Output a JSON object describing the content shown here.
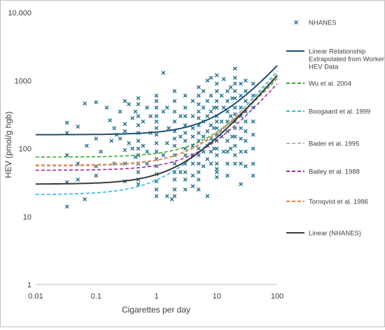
{
  "chart_data": {
    "type": "scatter",
    "title": "",
    "xlabel": "Cigarettes per day",
    "ylabel": "HEV (pmol/g hgb)",
    "x_scale": "log",
    "y_scale": "log",
    "xlim": [
      0.01,
      100
    ],
    "ylim": [
      1,
      10000
    ],
    "x_ticks": [
      "0.01",
      "0.1",
      "1",
      "10",
      "100"
    ],
    "y_ticks": [
      "1",
      "10",
      "100",
      "1000",
      "10,000"
    ],
    "grid": false,
    "legend_position": "right",
    "colors": {
      "nhanes": "#1f6d8c",
      "worker": "#1b4f72",
      "wu": "#3aa832",
      "boogaard": "#2fb7e6",
      "bader": "#b8b8b8",
      "bailey": "#a4289b",
      "tornqvist": "#ee7a3a",
      "linear_nhanes": "#3a3a3a"
    },
    "series": [
      {
        "name": "NHANES",
        "type": "scatter",
        "marker": "x",
        "color_key": "nhanes",
        "points": [
          [
            0.033,
            240
          ],
          [
            0.033,
            170
          ],
          [
            0.033,
            80
          ],
          [
            0.033,
            14
          ],
          [
            0.033,
            32
          ],
          [
            0.05,
            210
          ],
          [
            0.05,
            60
          ],
          [
            0.05,
            35
          ],
          [
            0.065,
            460
          ],
          [
            0.065,
            18
          ],
          [
            0.07,
            110
          ],
          [
            0.1,
            480
          ],
          [
            0.1,
            140
          ],
          [
            0.1,
            55
          ],
          [
            0.1,
            40
          ],
          [
            0.12,
            90
          ],
          [
            0.15,
            400
          ],
          [
            0.17,
            260
          ],
          [
            0.18,
            130
          ],
          [
            0.2,
            60
          ],
          [
            0.2,
            200
          ],
          [
            0.22,
            160
          ],
          [
            0.25,
            350
          ],
          [
            0.25,
            140
          ],
          [
            0.3,
            500
          ],
          [
            0.3,
            230
          ],
          [
            0.3,
            180
          ],
          [
            0.3,
            95
          ],
          [
            0.3,
            60
          ],
          [
            0.3,
            33
          ],
          [
            0.35,
            450
          ],
          [
            0.35,
            120
          ],
          [
            0.4,
            280
          ],
          [
            0.4,
            100
          ],
          [
            0.45,
            350
          ],
          [
            0.45,
            75
          ],
          [
            0.5,
            550
          ],
          [
            0.5,
            450
          ],
          [
            0.5,
            300
          ],
          [
            0.5,
            220
          ],
          [
            0.5,
            170
          ],
          [
            0.5,
            130
          ],
          [
            0.5,
            100
          ],
          [
            0.5,
            80
          ],
          [
            0.5,
            60
          ],
          [
            0.5,
            45
          ],
          [
            0.5,
            35
          ],
          [
            0.5,
            30
          ],
          [
            0.6,
            250
          ],
          [
            0.6,
            110
          ],
          [
            0.7,
            400
          ],
          [
            0.7,
            90
          ],
          [
            0.7,
            60
          ],
          [
            0.8,
            300
          ],
          [
            0.8,
            170
          ],
          [
            1,
            600
          ],
          [
            1,
            500
          ],
          [
            1,
            400
          ],
          [
            1,
            300
          ],
          [
            1,
            250
          ],
          [
            1,
            200
          ],
          [
            1,
            160
          ],
          [
            1,
            120
          ],
          [
            1,
            90
          ],
          [
            1,
            70
          ],
          [
            1,
            55
          ],
          [
            1,
            42
          ],
          [
            1,
            33
          ],
          [
            1,
            25
          ],
          [
            1,
            20
          ],
          [
            1.3,
            1300
          ],
          [
            1.3,
            350
          ],
          [
            1.3,
            80
          ],
          [
            1.5,
            400
          ],
          [
            1.5,
            120
          ],
          [
            1.5,
            20
          ],
          [
            1.6,
            200
          ],
          [
            1.8,
            18
          ],
          [
            2,
            700
          ],
          [
            2,
            500
          ],
          [
            2,
            350
          ],
          [
            2,
            250
          ],
          [
            2,
            180
          ],
          [
            2,
            140
          ],
          [
            2,
            110
          ],
          [
            2,
            80
          ],
          [
            2,
            60
          ],
          [
            2,
            45
          ],
          [
            2,
            35
          ],
          [
            2,
            25
          ],
          [
            2,
            20
          ],
          [
            2.5,
            150
          ],
          [
            2.5,
            300
          ],
          [
            2.5,
            45
          ],
          [
            3,
            600
          ],
          [
            3,
            400
          ],
          [
            3,
            300
          ],
          [
            3,
            220
          ],
          [
            3,
            170
          ],
          [
            3,
            130
          ],
          [
            3,
            100
          ],
          [
            3,
            80
          ],
          [
            3,
            60
          ],
          [
            3,
            45
          ],
          [
            3,
            35
          ],
          [
            3,
            25
          ],
          [
            4,
            500
          ],
          [
            4,
            300
          ],
          [
            4,
            200
          ],
          [
            4,
            150
          ],
          [
            4,
            110
          ],
          [
            4,
            80
          ],
          [
            4,
            60
          ],
          [
            4,
            40
          ],
          [
            4,
            28
          ],
          [
            5,
            800
          ],
          [
            5,
            600
          ],
          [
            5,
            450
          ],
          [
            5,
            350
          ],
          [
            5,
            280
          ],
          [
            5,
            220
          ],
          [
            5,
            170
          ],
          [
            5,
            130
          ],
          [
            5,
            100
          ],
          [
            5,
            80
          ],
          [
            5,
            60
          ],
          [
            5,
            45
          ],
          [
            5,
            35
          ],
          [
            5,
            25
          ],
          [
            6,
            700
          ],
          [
            6,
            400
          ],
          [
            6,
            250
          ],
          [
            6,
            150
          ],
          [
            6,
            90
          ],
          [
            6,
            55
          ],
          [
            7,
            1000
          ],
          [
            7,
            500
          ],
          [
            7,
            300
          ],
          [
            7,
            180
          ],
          [
            7,
            110
          ],
          [
            7,
            70
          ],
          [
            7,
            20
          ],
          [
            8,
            1100
          ],
          [
            8,
            600
          ],
          [
            8,
            350
          ],
          [
            8,
            220
          ],
          [
            8,
            140
          ],
          [
            8,
            90
          ],
          [
            8,
            60
          ],
          [
            9,
            400
          ],
          [
            9,
            200
          ],
          [
            9,
            100
          ],
          [
            10,
            1200
          ],
          [
            10,
            900
          ],
          [
            10,
            700
          ],
          [
            10,
            500
          ],
          [
            10,
            400
          ],
          [
            10,
            300
          ],
          [
            10,
            250
          ],
          [
            10,
            200
          ],
          [
            10,
            160
          ],
          [
            10,
            130
          ],
          [
            10,
            100
          ],
          [
            10,
            80
          ],
          [
            10,
            60
          ],
          [
            10,
            50
          ],
          [
            10,
            45
          ],
          [
            10,
            38
          ],
          [
            12,
            600
          ],
          [
            12,
            250
          ],
          [
            12,
            150
          ],
          [
            13,
            1050
          ],
          [
            13,
            400
          ],
          [
            13,
            90
          ],
          [
            15,
            700
          ],
          [
            15,
            500
          ],
          [
            15,
            350
          ],
          [
            15,
            250
          ],
          [
            15,
            180
          ],
          [
            15,
            130
          ],
          [
            15,
            90
          ],
          [
            15,
            60
          ],
          [
            15,
            40
          ],
          [
            17,
            800
          ],
          [
            17,
            300
          ],
          [
            17,
            100
          ],
          [
            18,
            550
          ],
          [
            18,
            150
          ],
          [
            20,
            1500
          ],
          [
            20,
            1100
          ],
          [
            20,
            900
          ],
          [
            20,
            700
          ],
          [
            20,
            550
          ],
          [
            20,
            400
          ],
          [
            20,
            320
          ],
          [
            20,
            250
          ],
          [
            20,
            200
          ],
          [
            20,
            150
          ],
          [
            20,
            110
          ],
          [
            20,
            80
          ],
          [
            20,
            60
          ],
          [
            25,
            900
          ],
          [
            25,
            600
          ],
          [
            25,
            400
          ],
          [
            25,
            300
          ],
          [
            25,
            200
          ],
          [
            25,
            140
          ],
          [
            25,
            90
          ],
          [
            25,
            60
          ],
          [
            25,
            30
          ],
          [
            30,
            1000
          ],
          [
            30,
            700
          ],
          [
            30,
            500
          ],
          [
            30,
            350
          ],
          [
            30,
            250
          ],
          [
            30,
            180
          ],
          [
            30,
            130
          ],
          [
            30,
            90
          ],
          [
            30,
            55
          ],
          [
            40,
            900
          ],
          [
            40,
            600
          ],
          [
            40,
            400
          ],
          [
            40,
            250
          ],
          [
            40,
            160
          ],
          [
            40,
            100
          ],
          [
            40,
            60
          ],
          [
            40,
            40
          ]
        ]
      },
      {
        "name": "Linear Relationship Extrapolated from Worker HEV Data",
        "type": "line",
        "style": "solid",
        "color_key": "worker",
        "intercept": 160,
        "slope": 15
      },
      {
        "name": "Wu et al. 2004",
        "type": "line",
        "style": "dashed",
        "color_key": "wu",
        "intercept": 75,
        "slope": 10
      },
      {
        "name": "Boogaard et al. 1999",
        "type": "line",
        "style": "dashed",
        "color_key": "boogaard",
        "intercept": 21,
        "slope": 13.5
      },
      {
        "name": "Bader et al. 1995",
        "type": "line",
        "style": "dashed",
        "color_key": "bader",
        "intercept": 55,
        "slope": 12
      },
      {
        "name": "Bailey et al. 1988",
        "type": "line",
        "style": "dashed",
        "color_key": "bailey",
        "intercept": 48,
        "slope": 8.5
      },
      {
        "name": "Tornqvist et al. 1986",
        "type": "line",
        "style": "dashed",
        "color_key": "tornqvist",
        "intercept": 57,
        "slope": 11
      },
      {
        "name": "Linear (NHANES)",
        "type": "line",
        "style": "solid",
        "color_key": "linear_nhanes",
        "intercept": 30,
        "slope": 11.5
      }
    ],
    "legend": [
      {
        "label_lines": [
          "NHANES"
        ],
        "symbol": "x",
        "color_key": "nhanes"
      },
      {
        "label_lines": [
          "Linear Relationship",
          "Extrapolated from Worker",
          "HEV Data"
        ],
        "symbol": "solid",
        "color_key": "worker"
      },
      {
        "label_lines": [
          "Wu et al. 2004"
        ],
        "symbol": "dashed",
        "color_key": "wu"
      },
      {
        "label_lines": [
          "Boogaard et al. 1999"
        ],
        "symbol": "dashed",
        "color_key": "boogaard"
      },
      {
        "label_lines": [
          "Bader et al. 1995"
        ],
        "symbol": "dashed",
        "color_key": "bader"
      },
      {
        "label_lines": [
          "Bailey et al. 1988"
        ],
        "symbol": "dashed",
        "color_key": "bailey"
      },
      {
        "label_lines": [
          "Tornqvist et al. 1986"
        ],
        "symbol": "dashed",
        "color_key": "tornqvist"
      },
      {
        "label_lines": [
          "Linear (NHANES)"
        ],
        "symbol": "solid",
        "color_key": "linear_nhanes"
      }
    ]
  }
}
